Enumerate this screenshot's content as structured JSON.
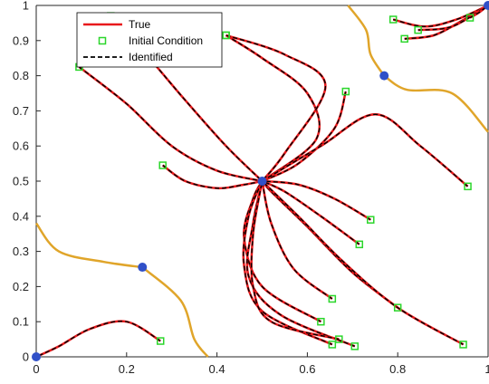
{
  "chart_data": {
    "type": "line",
    "title": "",
    "xlabel": "",
    "ylabel": "",
    "xlim": [
      0,
      1
    ],
    "ylim": [
      0,
      1
    ],
    "x_ticks": [
      "0",
      "0.2",
      "0.4",
      "0.6",
      "0.8",
      "1"
    ],
    "y_ticks": [
      "0",
      "0.1",
      "0.2",
      "0.3",
      "0.4",
      "0.5",
      "0.6",
      "0.7",
      "0.8",
      "0.9",
      "1"
    ],
    "legend": {
      "placement": "top-left",
      "entries": [
        {
          "label": "True",
          "color": "#e8191b",
          "style": "solid"
        },
        {
          "label": "Initial Condition",
          "color": "#2bd62b",
          "style": "square-marker"
        },
        {
          "label": "Identified",
          "color": "#000000",
          "style": "dashed"
        }
      ]
    },
    "colors": {
      "true": "#e8191b",
      "identified": "#000000",
      "initial": "#2bd62b",
      "fixed_point": "#3050c8",
      "manifold": "#e0a52a"
    },
    "fixed_points": [
      {
        "x": 0.5,
        "y": 0.5
      },
      {
        "x": 0.0,
        "y": 0.0
      },
      {
        "x": 1.0,
        "y": 1.0
      },
      {
        "x": 0.235,
        "y": 0.255
      },
      {
        "x": 0.77,
        "y": 0.8
      }
    ],
    "series": [
      {
        "initial": [
          0.095,
          0.825
        ],
        "points": [
          [
            0.095,
            0.825
          ],
          [
            0.2,
            0.72
          ],
          [
            0.3,
            0.6
          ],
          [
            0.4,
            0.53
          ],
          [
            0.5,
            0.5
          ]
        ]
      },
      {
        "initial": [
          0.165,
          0.97
        ],
        "points": [
          [
            0.165,
            0.97
          ],
          [
            0.25,
            0.85
          ],
          [
            0.33,
            0.73
          ],
          [
            0.42,
            0.6
          ],
          [
            0.5,
            0.5
          ]
        ]
      },
      {
        "initial": [
          0.28,
          0.545
        ],
        "points": [
          [
            0.28,
            0.545
          ],
          [
            0.33,
            0.5
          ],
          [
            0.4,
            0.48
          ],
          [
            0.46,
            0.49
          ],
          [
            0.5,
            0.5
          ]
        ]
      },
      {
        "initial": [
          0.42,
          0.915
        ],
        "points": [
          [
            0.42,
            0.915
          ],
          [
            0.5,
            0.85
          ],
          [
            0.6,
            0.75
          ],
          [
            0.62,
            0.62
          ],
          [
            0.5,
            0.5
          ]
        ]
      },
      {
        "initial": [
          0.42,
          0.915
        ],
        "points": [
          [
            0.42,
            0.915
          ],
          [
            0.55,
            0.86
          ],
          [
            0.64,
            0.77
          ],
          [
            0.55,
            0.58
          ],
          [
            0.5,
            0.5
          ]
        ]
      },
      {
        "initial": [
          0.685,
          0.755
        ],
        "points": [
          [
            0.685,
            0.755
          ],
          [
            0.66,
            0.65
          ],
          [
            0.58,
            0.55
          ],
          [
            0.5,
            0.5
          ]
        ]
      },
      {
        "initial": [
          0.955,
          0.485
        ],
        "points": [
          [
            0.955,
            0.485
          ],
          [
            0.85,
            0.6
          ],
          [
            0.75,
            0.69
          ],
          [
            0.63,
            0.6
          ],
          [
            0.5,
            0.5
          ]
        ]
      },
      {
        "initial": [
          0.74,
          0.39
        ],
        "points": [
          [
            0.74,
            0.39
          ],
          [
            0.66,
            0.45
          ],
          [
            0.58,
            0.49
          ],
          [
            0.5,
            0.5
          ]
        ]
      },
      {
        "initial": [
          0.715,
          0.32
        ],
        "points": [
          [
            0.715,
            0.32
          ],
          [
            0.63,
            0.4
          ],
          [
            0.55,
            0.47
          ],
          [
            0.5,
            0.5
          ]
        ]
      },
      {
        "initial": [
          0.8,
          0.14
        ],
        "points": [
          [
            0.8,
            0.14
          ],
          [
            0.7,
            0.24
          ],
          [
            0.6,
            0.37
          ],
          [
            0.52,
            0.47
          ],
          [
            0.5,
            0.5
          ]
        ]
      },
      {
        "initial": [
          0.655,
          0.165
        ],
        "points": [
          [
            0.655,
            0.165
          ],
          [
            0.57,
            0.25
          ],
          [
            0.52,
            0.38
          ],
          [
            0.5,
            0.5
          ]
        ]
      },
      {
        "initial": [
          0.945,
          0.035
        ],
        "points": [
          [
            0.945,
            0.035
          ],
          [
            0.8,
            0.14
          ],
          [
            0.68,
            0.27
          ],
          [
            0.58,
            0.4
          ],
          [
            0.5,
            0.5
          ]
        ]
      },
      {
        "initial": [
          0.63,
          0.1
        ],
        "points": [
          [
            0.63,
            0.1
          ],
          [
            0.5,
            0.2
          ],
          [
            0.46,
            0.34
          ],
          [
            0.48,
            0.45
          ],
          [
            0.5,
            0.5
          ]
        ]
      },
      {
        "initial": [
          0.655,
          0.035
        ],
        "points": [
          [
            0.655,
            0.035
          ],
          [
            0.5,
            0.13
          ],
          [
            0.46,
            0.26
          ],
          [
            0.47,
            0.4
          ],
          [
            0.5,
            0.5
          ]
        ]
      },
      {
        "initial": [
          0.705,
          0.03
        ],
        "points": [
          [
            0.705,
            0.03
          ],
          [
            0.54,
            0.12
          ],
          [
            0.47,
            0.23
          ],
          [
            0.48,
            0.38
          ],
          [
            0.5,
            0.5
          ]
        ]
      },
      {
        "initial": [
          0.67,
          0.05
        ],
        "points": [
          [
            0.67,
            0.05
          ],
          [
            0.52,
            0.1
          ],
          [
            0.48,
            0.2
          ],
          [
            0.48,
            0.35
          ],
          [
            0.5,
            0.5
          ]
        ]
      },
      {
        "initial": [
          0.275,
          0.045
        ],
        "points": [
          [
            0.275,
            0.045
          ],
          [
            0.2,
            0.1
          ],
          [
            0.12,
            0.08
          ],
          [
            0.05,
            0.03
          ],
          [
            0.0,
            0.0
          ]
        ]
      },
      {
        "initial": [
          0.79,
          0.96
        ],
        "points": [
          [
            0.79,
            0.96
          ],
          [
            0.86,
            0.94
          ],
          [
            0.93,
            0.96
          ],
          [
            1.0,
            1.0
          ]
        ]
      },
      {
        "initial": [
          0.815,
          0.905
        ],
        "points": [
          [
            0.815,
            0.905
          ],
          [
            0.88,
            0.915
          ],
          [
            0.94,
            0.955
          ],
          [
            1.0,
            1.0
          ]
        ]
      },
      {
        "initial": [
          0.845,
          0.93
        ],
        "points": [
          [
            0.845,
            0.93
          ],
          [
            0.92,
            0.94
          ],
          [
            1.0,
            1.0
          ]
        ]
      },
      {
        "initial": [
          0.96,
          0.965
        ],
        "points": [
          [
            0.96,
            0.965
          ],
          [
            0.98,
            0.98
          ],
          [
            1.0,
            1.0
          ]
        ]
      }
    ],
    "manifolds": [
      {
        "points": [
          [
            0.0,
            0.38
          ],
          [
            0.05,
            0.3
          ],
          [
            0.15,
            0.27
          ],
          [
            0.235,
            0.255
          ]
        ]
      },
      {
        "points": [
          [
            0.235,
            0.255
          ],
          [
            0.32,
            0.16
          ],
          [
            0.35,
            0.05
          ],
          [
            0.38,
            0.0
          ]
        ]
      },
      {
        "points": [
          [
            0.77,
            0.8
          ],
          [
            0.82,
            0.76
          ],
          [
            0.92,
            0.75
          ],
          [
            1.0,
            0.64
          ]
        ]
      },
      {
        "points": [
          [
            0.77,
            0.8
          ],
          [
            0.74,
            0.86
          ],
          [
            0.73,
            0.93
          ],
          [
            0.69,
            1.0
          ]
        ]
      }
    ]
  }
}
